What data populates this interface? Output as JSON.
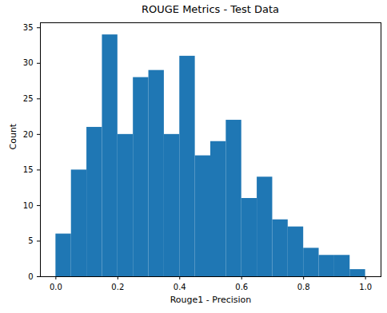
{
  "chart_data": {
    "type": "histogram",
    "title": "ROUGE Metrics - Test Data",
    "x_label": "Rouge1 - Precision",
    "y_label": "Count",
    "bins": [
      0.0,
      0.05,
      0.1,
      0.15,
      0.2,
      0.25,
      0.3,
      0.35,
      0.4,
      0.45,
      0.5,
      0.55,
      0.6,
      0.65,
      0.7,
      0.75,
      0.8,
      0.85,
      0.9,
      0.95,
      1.0
    ],
    "values": [
      6,
      15,
      21,
      34,
      20,
      28,
      29,
      20,
      31,
      17,
      19,
      22,
      11,
      14,
      8,
      7,
      4,
      3,
      3,
      1
    ],
    "color": "#1f77b4",
    "xlim": [
      -0.05,
      1.05
    ],
    "xticks": [
      {
        "value": 0,
        "label": "0.0"
      },
      0.2,
      0.4,
      0.6,
      0.8,
      {
        "value": 1,
        "label": "1.0"
      }
    ],
    "ylim": [
      0,
      35.7
    ],
    "yticks": [
      0,
      5,
      10,
      15,
      20,
      25,
      30,
      35
    ],
    "grid": false
  }
}
